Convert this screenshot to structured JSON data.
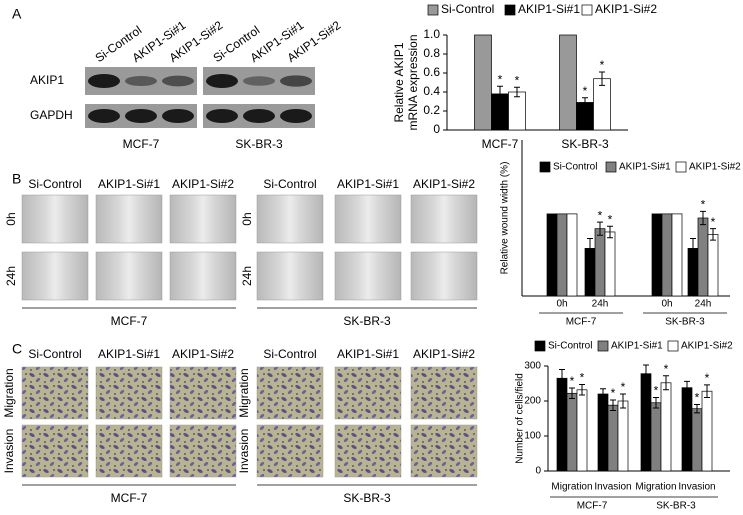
{
  "figure": {
    "panel_labels": [
      "A",
      "B",
      "C"
    ],
    "western_blot": {
      "lanes": [
        "Si-Control",
        "AKIP1-Si#1",
        "AKIP1-Si#2"
      ],
      "cell_lines": [
        "MCF-7",
        "SK-BR-3"
      ],
      "rows": [
        "AKIP1",
        "GAPDH"
      ]
    },
    "wound_healing": {
      "columns": [
        "Si-Control",
        "AKIP1-Si#1",
        "AKIP1-Si#2"
      ],
      "rows": [
        "0h",
        "24h"
      ],
      "cell_lines": [
        "MCF-7",
        "SK-BR-3"
      ]
    },
    "transwell": {
      "columns": [
        "Si-Control",
        "AKIP1-Si#1",
        "AKIP1-Si#2"
      ],
      "rows": [
        "Migration",
        "Invasion"
      ],
      "cell_lines": [
        "MCF-7",
        "SK-BR-3"
      ]
    }
  },
  "chart_data": [
    {
      "type": "bar",
      "ylabel": [
        "Relative AKIP1",
        "mRNA expression"
      ],
      "categories": [
        "MCF-7",
        "SK-BR-3"
      ],
      "series": [
        {
          "name": "Si-Control",
          "color": "#999999",
          "values": [
            1.0,
            1.0
          ]
        },
        {
          "name": "AKIP1-Si#1",
          "color": "#000000",
          "values": [
            0.38,
            0.29
          ],
          "errors": [
            0.08,
            0.05
          ],
          "labels": [
            "*",
            "*"
          ]
        },
        {
          "name": "AKIP1-Si#2",
          "color": "#ffffff",
          "values": [
            0.4,
            0.54
          ],
          "errors": [
            0.05,
            0.07
          ],
          "labels": [
            "*",
            "*"
          ]
        }
      ],
      "ylim": [
        0,
        1.0
      ],
      "yticks": [
        0,
        0.2,
        0.4,
        0.6,
        0.8,
        {
          "value": 1.0,
          "label": "1.0"
        }
      ]
    },
    {
      "type": "bar",
      "ylabel": "Relative wound width (%)",
      "categories": [
        "0h",
        "24h",
        "0h",
        "24h"
      ],
      "groups": [
        "MCF-7",
        "SK-BR-3"
      ],
      "series": [
        {
          "name": "Si-Control",
          "color": "#000000",
          "values": [
            100,
            58,
            100,
            58
          ],
          "errors": [
            0,
            12,
            0,
            12
          ]
        },
        {
          "name": "AKIP1-Si#1",
          "color": "#808080",
          "values": [
            100,
            82,
            100,
            95
          ],
          "errors": [
            0,
            8,
            0,
            8
          ],
          "labels": [
            null,
            "*",
            null,
            "*"
          ]
        },
        {
          "name": "AKIP1-Si#2",
          "color": "#ffffff",
          "values": [
            100,
            78,
            100,
            75
          ],
          "errors": [
            0,
            7,
            0,
            7
          ],
          "labels": [
            null,
            "*",
            null,
            "*"
          ]
        }
      ],
      "ylim": [
        0,
        190
      ]
    },
    {
      "type": "bar",
      "ylabel": "Number of cells/field",
      "categories": [
        "Migration",
        "Invasion",
        "Migration",
        "Invasion"
      ],
      "groups": [
        "MCF-7",
        "SK-BR-3"
      ],
      "series": [
        {
          "name": "Si-Control",
          "color": "#000000",
          "values": [
            265,
            220,
            278,
            238
          ],
          "errors": [
            25,
            15,
            25,
            18
          ]
        },
        {
          "name": "AKIP1-Si#1",
          "color": "#808080",
          "values": [
            222,
            188,
            195,
            178
          ],
          "errors": [
            15,
            15,
            15,
            12
          ],
          "labels": [
            "*",
            "*",
            "*",
            "*"
          ]
        },
        {
          "name": "AKIP1-Si#2",
          "color": "#ffffff",
          "values": [
            232,
            200,
            252,
            228
          ],
          "errors": [
            15,
            20,
            20,
            18
          ],
          "labels": [
            "*",
            "*",
            "*",
            "*"
          ]
        }
      ],
      "ylim": [
        0,
        300
      ],
      "yticks": [
        0,
        100,
        200,
        300
      ]
    }
  ]
}
